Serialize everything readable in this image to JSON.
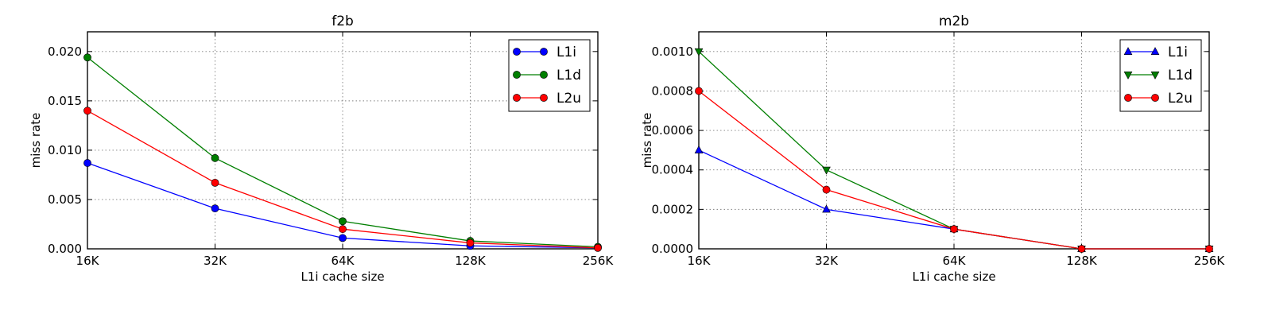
{
  "chart_data": [
    {
      "type": "line",
      "title": "f2b",
      "xlabel": "L1i cache size",
      "ylabel": "miss rate",
      "categories": [
        "16K",
        "32K",
        "64K",
        "128K",
        "256K"
      ],
      "x_scale": "log2",
      "ylim": [
        0,
        0.022
      ],
      "yticks": [
        0.0,
        0.005,
        0.01,
        0.015,
        0.02
      ],
      "ytick_labels": [
        "0.000",
        "0.005",
        "0.010",
        "0.015",
        "0.020"
      ],
      "grid": true,
      "legend_position": "top-right",
      "series": [
        {
          "name": "L1i",
          "color": "#0000ff",
          "marker": "circle",
          "values": [
            0.0087,
            0.0041,
            0.0011,
            0.0003,
            0.0001
          ]
        },
        {
          "name": "L1d",
          "color": "#007f00",
          "marker": "circle",
          "values": [
            0.0194,
            0.0092,
            0.0028,
            0.0008,
            0.0002
          ]
        },
        {
          "name": "L2u",
          "color": "#ff0000",
          "marker": "circle",
          "values": [
            0.014,
            0.0067,
            0.002,
            0.0006,
            0.0001
          ]
        }
      ]
    },
    {
      "type": "line",
      "title": "m2b",
      "xlabel": "L1i cache size",
      "ylabel": "miss rate",
      "categories": [
        "16K",
        "32K",
        "64K",
        "128K",
        "256K"
      ],
      "x_scale": "log2",
      "ylim": [
        0,
        0.0011
      ],
      "yticks": [
        0.0,
        0.0002,
        0.0004,
        0.0006,
        0.0008,
        0.001
      ],
      "ytick_labels": [
        "0.0000",
        "0.0002",
        "0.0004",
        "0.0006",
        "0.0008",
        "0.0010"
      ],
      "grid": true,
      "legend_position": "top-right",
      "series": [
        {
          "name": "L1i",
          "color": "#0000ff",
          "marker": "triangle-up",
          "values": [
            0.0005,
            0.0002,
            0.0001,
            0.0,
            0.0
          ]
        },
        {
          "name": "L1d",
          "color": "#007f00",
          "marker": "triangle-down",
          "values": [
            0.001,
            0.0004,
            0.0001,
            0.0,
            0.0
          ]
        },
        {
          "name": "L2u",
          "color": "#ff0000",
          "marker": "circle",
          "values": [
            0.0008,
            0.0003,
            0.0001,
            0.0,
            0.0
          ]
        }
      ]
    }
  ]
}
